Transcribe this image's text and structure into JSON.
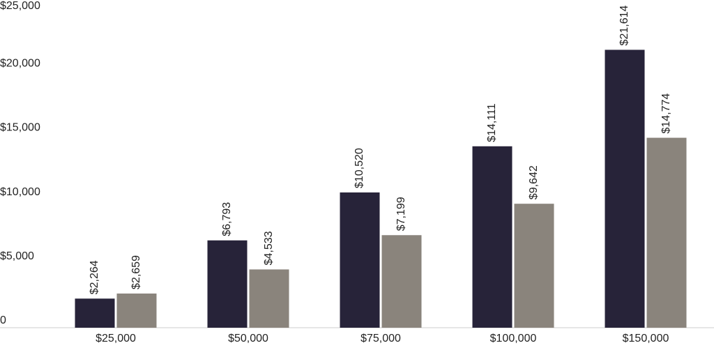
{
  "chart_data": {
    "type": "bar",
    "categories": [
      "$25,000",
      "$50,000",
      "$75,000",
      "$100,000",
      "$150,000"
    ],
    "series": [
      {
        "color": "#272339",
        "values": [
          2264,
          6793,
          10520,
          14111,
          21614
        ],
        "value_labels": [
          "$2,264",
          "$6,793",
          "$10,520",
          "$14,111",
          "$21,614"
        ]
      },
      {
        "color": "#8a847c",
        "values": [
          2659,
          4533,
          7199,
          9642,
          14774
        ],
        "value_labels": [
          "$2,659",
          "$4,533",
          "$7,199",
          "$9,642",
          "$14,774"
        ]
      }
    ],
    "ylim": [
      0,
      25000
    ],
    "yticks": [
      0,
      {
        "value": 5000,
        "label": "$5,000"
      },
      {
        "value": 10000,
        "label": "$10,000"
      },
      {
        "value": 15000,
        "label": "$15,000"
      },
      {
        "value": 20000,
        "label": "$20,000"
      },
      {
        "value": 25000,
        "label": "$25,000"
      }
    ],
    "grid": false
  }
}
